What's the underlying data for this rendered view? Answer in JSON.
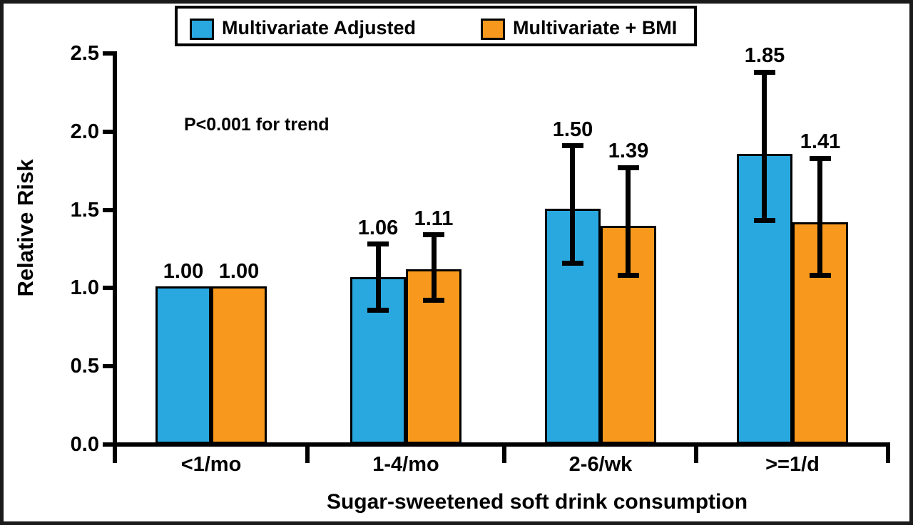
{
  "chart_data": {
    "type": "bar",
    "title": "",
    "xlabel": "Sugar-sweetened soft drink consumption",
    "ylabel": "Relative Risk",
    "annotation": "P<0.001 for trend",
    "categories": [
      "<1/mo",
      "1-4/mo",
      "2-6/wk",
      ">=1/d"
    ],
    "series": [
      {
        "name": "Multivariate Adjusted",
        "color": "#29A8E0",
        "values": [
          1.0,
          1.06,
          1.5,
          1.85
        ],
        "value_labels": [
          "1.00",
          "1.06",
          "1.50",
          "1.85"
        ],
        "error_low": [
          null,
          0.86,
          1.16,
          1.43
        ],
        "error_high": [
          null,
          1.28,
          1.91,
          2.38
        ]
      },
      {
        "name": "Multivariate + BMI",
        "color": "#F8991D",
        "values": [
          1.0,
          1.11,
          1.39,
          1.41
        ],
        "value_labels": [
          "1.00",
          "1.11",
          "1.39",
          "1.41"
        ],
        "error_low": [
          null,
          0.92,
          1.08,
          1.08
        ],
        "error_high": [
          null,
          1.34,
          1.77,
          1.83
        ]
      }
    ],
    "ylim": [
      0.0,
      2.5
    ],
    "yticks": [
      "0.0",
      "0.5",
      "1.0",
      "1.5",
      "2.0",
      "2.5"
    ],
    "grid": false,
    "legend_position": "top",
    "error_bar_color": "#000000",
    "axis_color": "#000000"
  }
}
